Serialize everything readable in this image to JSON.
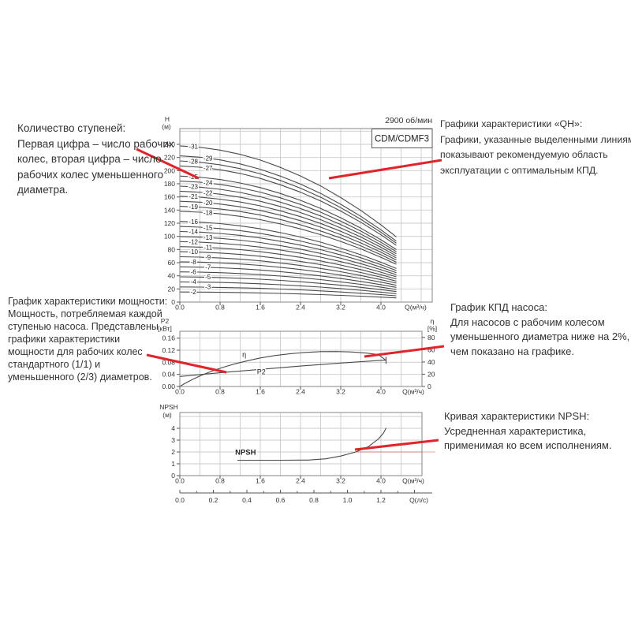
{
  "annotations": {
    "stages": "Количество ступеней:\nПервая цифра – число рабочих\nколес, вторая цифра – число\nрабочих колес уменьшенного\nдиаметра.",
    "qh": "Графики характеристики «QH»:\nГрафики, указанные выделенными линиями,\nпоказывают рекомендуемую область\nэксплуатации с оптимальным КПД.",
    "power": "График характеристики мощности:\nМощность, потребляемая каждой\nступенью насоса. Представлены\nграфики характеристики\nмощности для рабочих колес\nстандартного (1/1) и\nуменьшенного (2/3) диаметров.",
    "efficiency": "График КПД насоса:\nДля насосов с рабочим колесом\nуменьшенного диаметра ниже на 2%,\nчем показано на графике.",
    "npsh": "Кривая характеристики NPSH:\nУсредненная характеристика,\nприменимая ко всем исполнениям."
  },
  "chart_data": [
    {
      "id": "qh",
      "type": "line",
      "rpm_label": "2900 об/мин",
      "model_label": "CDM/CDMF3",
      "y_axis": {
        "name": "H",
        "unit": "(м)",
        "tick_values": [
          0,
          20,
          40,
          60,
          80,
          100,
          120,
          140,
          160,
          180,
          200,
          220,
          240
        ],
        "max": 264,
        "grid_step": 20
      },
      "x_axis": {
        "name": "Q(м³/ч)",
        "tick_values": [
          0,
          0.8,
          1.6,
          2.4,
          3.2,
          4.0
        ],
        "tick_labels": [
          "0.0",
          "0.8",
          "1.6",
          "2.4",
          "3.2",
          "4.0"
        ],
        "grid_step": 0.4
      },
      "per_stage_curve": {
        "q": [
          0,
          0.4,
          0.8,
          1.2,
          1.6,
          2.0,
          2.4,
          2.8,
          3.2,
          3.6,
          4.0,
          4.3
        ],
        "head_per_stage": [
          7.67,
          7.6,
          7.46,
          7.25,
          6.97,
          6.61,
          6.19,
          5.7,
          5.13,
          4.5,
          3.79,
          3.21
        ]
      },
      "stage_curves": [
        {
          "label": "-31",
          "stages": 31,
          "side": "left"
        },
        {
          "label": "-29",
          "stages": 29,
          "side": "right"
        },
        {
          "label": "-28",
          "stages": 28,
          "side": "left"
        },
        {
          "label": "-27",
          "stages": 27,
          "side": "right"
        },
        {
          "label": "-25",
          "stages": 25,
          "side": "left"
        },
        {
          "label": "-24",
          "stages": 24,
          "side": "right"
        },
        {
          "label": "-23",
          "stages": 23,
          "side": "left"
        },
        {
          "label": "-22",
          "stages": 22,
          "side": "right"
        },
        {
          "label": "-21",
          "stages": 21,
          "side": "left"
        },
        {
          "label": "-20",
          "stages": 20,
          "side": "right"
        },
        {
          "label": "-19",
          "stages": 19,
          "side": "left"
        },
        {
          "label": "-18",
          "stages": 18,
          "side": "right"
        },
        {
          "label": "-16",
          "stages": 16,
          "side": "left"
        },
        {
          "label": "-15",
          "stages": 15,
          "side": "right"
        },
        {
          "label": "-14",
          "stages": 14,
          "side": "left"
        },
        {
          "label": "-13",
          "stages": 13,
          "side": "right"
        },
        {
          "label": "-12",
          "stages": 12,
          "side": "left"
        },
        {
          "label": "-11",
          "stages": 11,
          "side": "right"
        },
        {
          "label": "-10",
          "stages": 10,
          "side": "left"
        },
        {
          "label": "-9",
          "stages": 9,
          "side": "right"
        },
        {
          "label": "-8",
          "stages": 8,
          "side": "left"
        },
        {
          "label": "-7",
          "stages": 7,
          "side": "right"
        },
        {
          "label": "-6",
          "stages": 6,
          "side": "left"
        },
        {
          "label": "-5",
          "stages": 5,
          "side": "right"
        },
        {
          "label": "-4",
          "stages": 4,
          "side": "left"
        },
        {
          "label": "-3",
          "stages": 3,
          "side": "right"
        },
        {
          "label": "-2",
          "stages": 2,
          "side": "left"
        }
      ]
    },
    {
      "id": "power_efficiency",
      "type": "line",
      "left_axis": {
        "name": "P2",
        "unit": "[кВт]",
        "tick_values": [
          0,
          0.04,
          0.08,
          0.12,
          0.16
        ],
        "tick_labels": [
          "0.00",
          "0.04",
          "0.08",
          "0.12",
          "0.16"
        ],
        "max": 0.1826
      },
      "right_axis": {
        "name": "η",
        "unit": "[%]",
        "tick_values": [
          0,
          20,
          40,
          60,
          80
        ],
        "tick_labels": [
          "0",
          "20",
          "40",
          "60",
          "80"
        ],
        "max": 90
      },
      "x_axis": {
        "name": "Q(м³/ч)",
        "tick_values": [
          0,
          0.8,
          1.6,
          2.4,
          3.2,
          4.0
        ],
        "tick_labels": [
          "0.0",
          "0.8",
          "1.6",
          "2.4",
          "3.2",
          "4.0"
        ],
        "grid_step": 0.4
      },
      "series": [
        {
          "name": "η",
          "axis": "right",
          "label": {
            "q": 1.28,
            "value": 52
          },
          "points": [
            [
              0,
              0
            ],
            [
              0.1,
              5
            ],
            [
              0.25,
              11.5
            ],
            [
              0.45,
              19
            ],
            [
              0.65,
              25.5
            ],
            [
              0.85,
              31
            ],
            [
              1.1,
              37
            ],
            [
              1.35,
              42
            ],
            [
              1.6,
              46.5
            ],
            [
              1.9,
              50.5
            ],
            [
              2.2,
              53.5
            ],
            [
              2.5,
              55.5
            ],
            [
              2.8,
              56.8
            ],
            [
              3.1,
              57
            ],
            [
              3.4,
              56.3
            ],
            [
              3.7,
              54.5
            ],
            [
              3.95,
              52
            ],
            [
              4.1,
              42.5
            ]
          ]
        },
        {
          "name": "P2",
          "axis": "left",
          "label": {
            "q": 1.62,
            "value": 0.0485
          },
          "points": [
            [
              0,
              0.033
            ],
            [
              0.4,
              0.0395
            ],
            [
              0.8,
              0.0455
            ],
            [
              1.2,
              0.051
            ],
            [
              1.6,
              0.0565
            ],
            [
              2.0,
              0.062
            ],
            [
              2.4,
              0.0675
            ],
            [
              2.8,
              0.0725
            ],
            [
              3.2,
              0.0775
            ],
            [
              3.6,
              0.082
            ],
            [
              3.95,
              0.0857
            ],
            [
              4.1,
              0.087
            ]
          ]
        }
      ]
    },
    {
      "id": "npsh",
      "type": "line",
      "y_axis": {
        "name": "NPSH",
        "unit": "(м)",
        "tick_values": [
          0,
          1,
          2,
          3,
          4
        ],
        "max": 5.33,
        "grid_step": 1
      },
      "x_axis": {
        "name": "Q(м³/ч)",
        "tick_values": [
          0,
          0.8,
          1.6,
          2.4,
          3.2,
          4.0
        ],
        "tick_labels": [
          "0.0",
          "0.8",
          "1.6",
          "2.4",
          "3.2",
          "4.0"
        ],
        "grid_step": 0.4
      },
      "x_axis_secondary": {
        "name": "Q(л/с)",
        "tick_values": [
          0,
          0.2,
          0.4,
          0.6,
          0.8,
          1.0,
          1.2
        ],
        "tick_labels": [
          "0.0",
          "0.2",
          "0.4",
          "0.6",
          "0.8",
          "1.0",
          "1.2"
        ],
        "minor_step": 0.1,
        "lps_per_m3h": 0.3
      },
      "series": [
        {
          "name": "NPSH",
          "label": {
            "q": 1.1,
            "value": 1.95
          },
          "points": [
            [
              1.15,
              1.3
            ],
            [
              2.0,
              1.3
            ],
            [
              2.55,
              1.31
            ],
            [
              2.9,
              1.42
            ],
            [
              3.2,
              1.65
            ],
            [
              3.5,
              2.0
            ],
            [
              3.75,
              2.45
            ],
            [
              3.95,
              3.1
            ],
            [
              4.05,
              3.6
            ],
            [
              4.1,
              4.0
            ]
          ]
        }
      ]
    }
  ]
}
